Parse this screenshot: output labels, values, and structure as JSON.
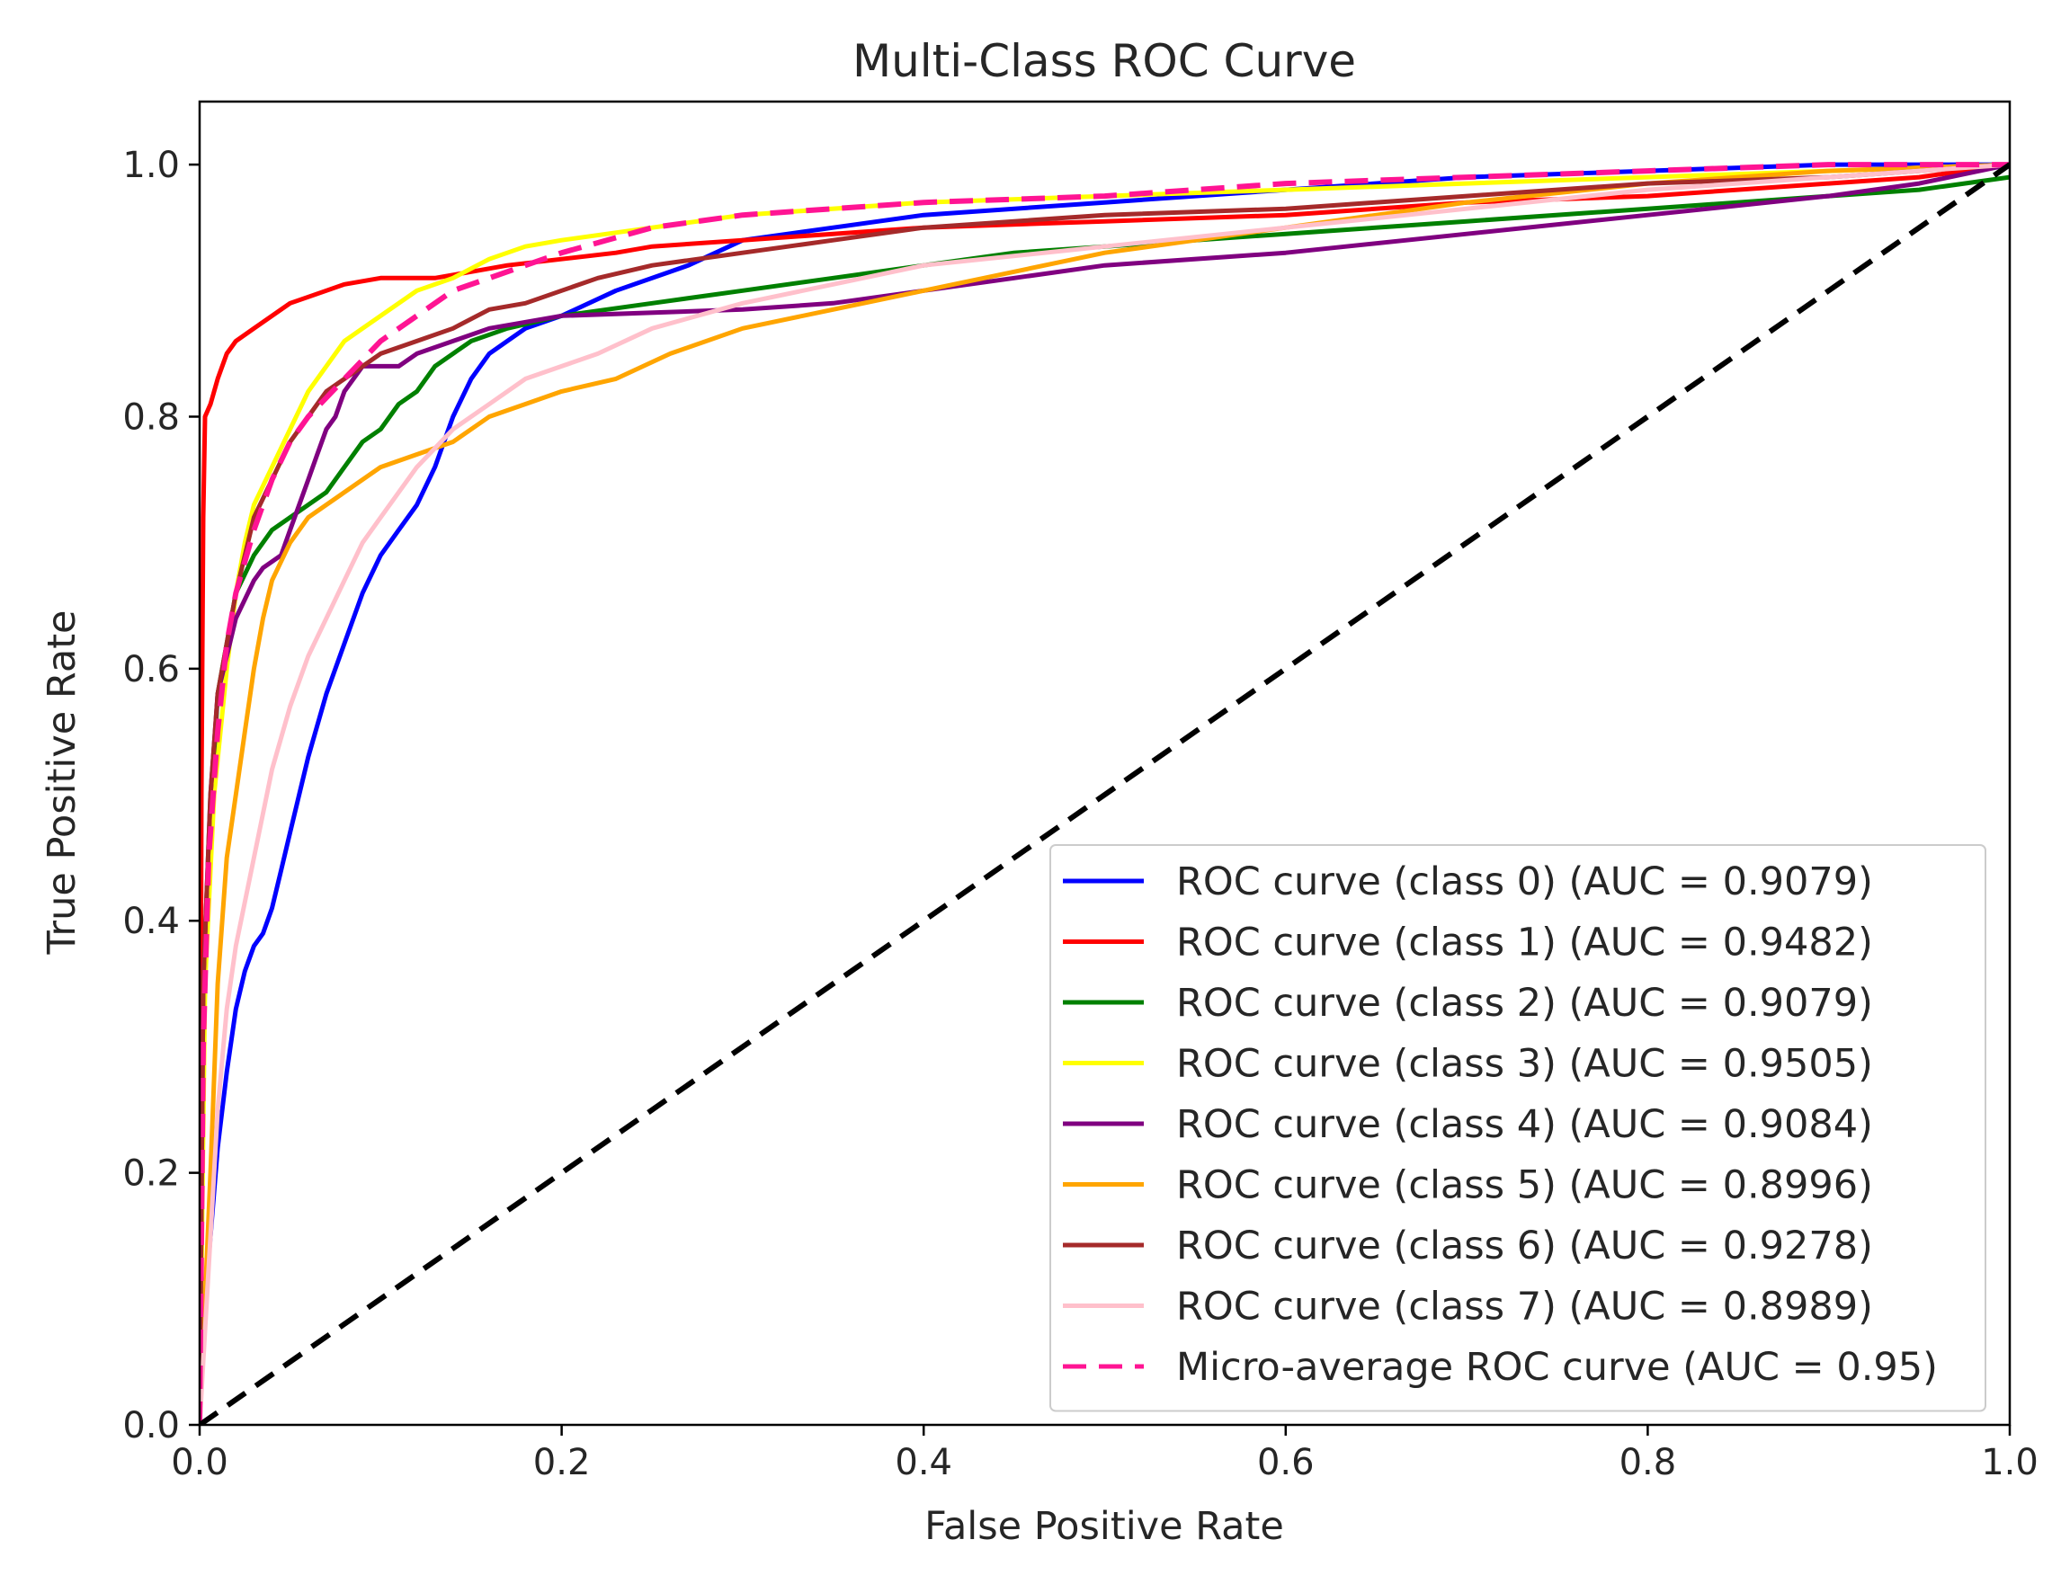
{
  "chart_data": {
    "type": "line",
    "title": "Multi-Class ROC Curve",
    "xlabel": "False Positive Rate",
    "ylabel": "True Positive Rate",
    "xlim": [
      0.0,
      1.0
    ],
    "ylim": [
      0.0,
      1.05
    ],
    "xticks": [
      0.0,
      0.2,
      0.4,
      0.6,
      0.8,
      1.0
    ],
    "yticks": [
      0.0,
      0.2,
      0.4,
      0.6,
      0.8,
      1.0
    ],
    "xtick_labels": [
      "0.0",
      "0.2",
      "0.4",
      "0.6",
      "0.8",
      "1.0"
    ],
    "ytick_labels": [
      "0.0",
      "0.2",
      "0.4",
      "0.6",
      "0.8",
      "1.0"
    ],
    "grid": false,
    "legend_position": "lower-right",
    "series": [
      {
        "name": "ROC curve (class 0) (AUC = 0.9079)",
        "color": "#0000ff",
        "style": "solid",
        "points": [
          [
            0,
            0
          ],
          [
            0.002,
            0.08
          ],
          [
            0.006,
            0.15
          ],
          [
            0.01,
            0.22
          ],
          [
            0.015,
            0.28
          ],
          [
            0.02,
            0.33
          ],
          [
            0.025,
            0.36
          ],
          [
            0.03,
            0.38
          ],
          [
            0.035,
            0.39
          ],
          [
            0.04,
            0.41
          ],
          [
            0.045,
            0.44
          ],
          [
            0.05,
            0.47
          ],
          [
            0.055,
            0.5
          ],
          [
            0.06,
            0.53
          ],
          [
            0.07,
            0.58
          ],
          [
            0.08,
            0.62
          ],
          [
            0.09,
            0.66
          ],
          [
            0.1,
            0.69
          ],
          [
            0.11,
            0.71
          ],
          [
            0.12,
            0.73
          ],
          [
            0.13,
            0.76
          ],
          [
            0.14,
            0.8
          ],
          [
            0.15,
            0.83
          ],
          [
            0.16,
            0.85
          ],
          [
            0.18,
            0.87
          ],
          [
            0.2,
            0.88
          ],
          [
            0.23,
            0.9
          ],
          [
            0.27,
            0.92
          ],
          [
            0.3,
            0.94
          ],
          [
            0.35,
            0.95
          ],
          [
            0.4,
            0.96
          ],
          [
            0.5,
            0.97
          ],
          [
            0.6,
            0.98
          ],
          [
            0.7,
            0.99
          ],
          [
            0.8,
            0.995
          ],
          [
            0.9,
            1.0
          ],
          [
            1.0,
            1.0
          ]
        ]
      },
      {
        "name": "ROC curve (class 1) (AUC = 0.9482)",
        "color": "#ff0000",
        "style": "solid",
        "points": [
          [
            0,
            0
          ],
          [
            0.001,
            0.5
          ],
          [
            0.002,
            0.72
          ],
          [
            0.003,
            0.8
          ],
          [
            0.006,
            0.81
          ],
          [
            0.01,
            0.83
          ],
          [
            0.015,
            0.85
          ],
          [
            0.02,
            0.86
          ],
          [
            0.03,
            0.87
          ],
          [
            0.04,
            0.88
          ],
          [
            0.05,
            0.89
          ],
          [
            0.06,
            0.895
          ],
          [
            0.07,
            0.9
          ],
          [
            0.08,
            0.905
          ],
          [
            0.1,
            0.91
          ],
          [
            0.13,
            0.91
          ],
          [
            0.15,
            0.915
          ],
          [
            0.17,
            0.92
          ],
          [
            0.2,
            0.925
          ],
          [
            0.23,
            0.93
          ],
          [
            0.25,
            0.935
          ],
          [
            0.3,
            0.94
          ],
          [
            0.35,
            0.945
          ],
          [
            0.4,
            0.95
          ],
          [
            0.5,
            0.955
          ],
          [
            0.6,
            0.96
          ],
          [
            0.7,
            0.97
          ],
          [
            0.8,
            0.975
          ],
          [
            0.9,
            0.985
          ],
          [
            0.95,
            0.99
          ],
          [
            1.0,
            1.0
          ]
        ]
      },
      {
        "name": "ROC curve (class 2) (AUC = 0.9079)",
        "color": "#008000",
        "style": "solid",
        "points": [
          [
            0,
            0
          ],
          [
            0.002,
            0.3
          ],
          [
            0.005,
            0.45
          ],
          [
            0.01,
            0.58
          ],
          [
            0.015,
            0.62
          ],
          [
            0.02,
            0.66
          ],
          [
            0.03,
            0.69
          ],
          [
            0.04,
            0.71
          ],
          [
            0.05,
            0.72
          ],
          [
            0.06,
            0.73
          ],
          [
            0.07,
            0.74
          ],
          [
            0.08,
            0.76
          ],
          [
            0.09,
            0.78
          ],
          [
            0.1,
            0.79
          ],
          [
            0.11,
            0.81
          ],
          [
            0.12,
            0.82
          ],
          [
            0.13,
            0.84
          ],
          [
            0.14,
            0.85
          ],
          [
            0.15,
            0.86
          ],
          [
            0.17,
            0.87
          ],
          [
            0.2,
            0.88
          ],
          [
            0.25,
            0.89
          ],
          [
            0.3,
            0.9
          ],
          [
            0.35,
            0.91
          ],
          [
            0.4,
            0.92
          ],
          [
            0.45,
            0.93
          ],
          [
            0.5,
            0.935
          ],
          [
            0.6,
            0.945
          ],
          [
            0.7,
            0.955
          ],
          [
            0.8,
            0.965
          ],
          [
            0.9,
            0.975
          ],
          [
            0.95,
            0.98
          ],
          [
            1.0,
            0.99
          ]
        ]
      },
      {
        "name": "ROC curve (class 3) (AUC = 0.9505)",
        "color": "#ffff00",
        "style": "solid",
        "points": [
          [
            0,
            0
          ],
          [
            0.003,
            0.35
          ],
          [
            0.008,
            0.5
          ],
          [
            0.015,
            0.6
          ],
          [
            0.02,
            0.66
          ],
          [
            0.025,
            0.7
          ],
          [
            0.03,
            0.73
          ],
          [
            0.04,
            0.76
          ],
          [
            0.05,
            0.79
          ],
          [
            0.06,
            0.82
          ],
          [
            0.07,
            0.84
          ],
          [
            0.08,
            0.86
          ],
          [
            0.09,
            0.87
          ],
          [
            0.1,
            0.88
          ],
          [
            0.12,
            0.9
          ],
          [
            0.14,
            0.91
          ],
          [
            0.16,
            0.925
          ],
          [
            0.18,
            0.935
          ],
          [
            0.2,
            0.94
          ],
          [
            0.25,
            0.95
          ],
          [
            0.3,
            0.96
          ],
          [
            0.4,
            0.97
          ],
          [
            0.5,
            0.975
          ],
          [
            0.6,
            0.98
          ],
          [
            0.7,
            0.985
          ],
          [
            0.8,
            0.99
          ],
          [
            0.9,
            0.995
          ],
          [
            1.0,
            1.0
          ]
        ]
      },
      {
        "name": "ROC curve (class 4) (AUC = 0.9084)",
        "color": "#800080",
        "style": "solid",
        "points": [
          [
            0,
            0
          ],
          [
            0.002,
            0.35
          ],
          [
            0.006,
            0.5
          ],
          [
            0.01,
            0.58
          ],
          [
            0.02,
            0.64
          ],
          [
            0.03,
            0.67
          ],
          [
            0.035,
            0.68
          ],
          [
            0.045,
            0.69
          ],
          [
            0.05,
            0.71
          ],
          [
            0.055,
            0.73
          ],
          [
            0.06,
            0.75
          ],
          [
            0.065,
            0.77
          ],
          [
            0.07,
            0.79
          ],
          [
            0.075,
            0.8
          ],
          [
            0.08,
            0.82
          ],
          [
            0.09,
            0.84
          ],
          [
            0.11,
            0.84
          ],
          [
            0.12,
            0.85
          ],
          [
            0.14,
            0.86
          ],
          [
            0.16,
            0.87
          ],
          [
            0.2,
            0.88
          ],
          [
            0.3,
            0.885
          ],
          [
            0.35,
            0.89
          ],
          [
            0.4,
            0.9
          ],
          [
            0.45,
            0.91
          ],
          [
            0.5,
            0.92
          ],
          [
            0.6,
            0.93
          ],
          [
            0.7,
            0.945
          ],
          [
            0.8,
            0.96
          ],
          [
            0.9,
            0.975
          ],
          [
            0.95,
            0.985
          ],
          [
            1.0,
            1.0
          ]
        ]
      },
      {
        "name": "ROC curve (class 5) (AUC = 0.8996)",
        "color": "#ffa500",
        "style": "solid",
        "points": [
          [
            0,
            0
          ],
          [
            0.003,
            0.1
          ],
          [
            0.006,
            0.2
          ],
          [
            0.01,
            0.35
          ],
          [
            0.015,
            0.45
          ],
          [
            0.02,
            0.5
          ],
          [
            0.025,
            0.55
          ],
          [
            0.03,
            0.6
          ],
          [
            0.035,
            0.64
          ],
          [
            0.04,
            0.67
          ],
          [
            0.05,
            0.7
          ],
          [
            0.06,
            0.72
          ],
          [
            0.07,
            0.73
          ],
          [
            0.08,
            0.74
          ],
          [
            0.1,
            0.76
          ],
          [
            0.12,
            0.77
          ],
          [
            0.14,
            0.78
          ],
          [
            0.16,
            0.8
          ],
          [
            0.18,
            0.81
          ],
          [
            0.2,
            0.82
          ],
          [
            0.23,
            0.83
          ],
          [
            0.26,
            0.85
          ],
          [
            0.3,
            0.87
          ],
          [
            0.35,
            0.885
          ],
          [
            0.4,
            0.9
          ],
          [
            0.45,
            0.915
          ],
          [
            0.5,
            0.93
          ],
          [
            0.6,
            0.95
          ],
          [
            0.7,
            0.97
          ],
          [
            0.8,
            0.985
          ],
          [
            0.9,
            0.995
          ],
          [
            1.0,
            1.0
          ]
        ]
      },
      {
        "name": "ROC curve (class 6) (AUC = 0.9278)",
        "color": "#a52a2a",
        "style": "solid",
        "points": [
          [
            0,
            0
          ],
          [
            0.002,
            0.35
          ],
          [
            0.006,
            0.5
          ],
          [
            0.01,
            0.58
          ],
          [
            0.02,
            0.66
          ],
          [
            0.03,
            0.72
          ],
          [
            0.04,
            0.75
          ],
          [
            0.05,
            0.78
          ],
          [
            0.06,
            0.8
          ],
          [
            0.07,
            0.82
          ],
          [
            0.08,
            0.83
          ],
          [
            0.09,
            0.84
          ],
          [
            0.1,
            0.85
          ],
          [
            0.12,
            0.86
          ],
          [
            0.14,
            0.87
          ],
          [
            0.16,
            0.885
          ],
          [
            0.18,
            0.89
          ],
          [
            0.2,
            0.9
          ],
          [
            0.22,
            0.91
          ],
          [
            0.25,
            0.92
          ],
          [
            0.3,
            0.93
          ],
          [
            0.35,
            0.94
          ],
          [
            0.4,
            0.95
          ],
          [
            0.5,
            0.96
          ],
          [
            0.6,
            0.965
          ],
          [
            0.7,
            0.975
          ],
          [
            0.8,
            0.985
          ],
          [
            0.9,
            0.99
          ],
          [
            1.0,
            1.0
          ]
        ]
      },
      {
        "name": "ROC curve (class 7) (AUC = 0.8989)",
        "color": "#ffc0cb",
        "style": "solid",
        "points": [
          [
            0,
            0
          ],
          [
            0.002,
            0.05
          ],
          [
            0.006,
            0.15
          ],
          [
            0.01,
            0.25
          ],
          [
            0.015,
            0.33
          ],
          [
            0.02,
            0.38
          ],
          [
            0.03,
            0.45
          ],
          [
            0.04,
            0.52
          ],
          [
            0.05,
            0.57
          ],
          [
            0.06,
            0.61
          ],
          [
            0.07,
            0.64
          ],
          [
            0.08,
            0.67
          ],
          [
            0.09,
            0.7
          ],
          [
            0.1,
            0.72
          ],
          [
            0.12,
            0.76
          ],
          [
            0.14,
            0.79
          ],
          [
            0.16,
            0.81
          ],
          [
            0.18,
            0.83
          ],
          [
            0.2,
            0.84
          ],
          [
            0.22,
            0.85
          ],
          [
            0.25,
            0.87
          ],
          [
            0.3,
            0.89
          ],
          [
            0.35,
            0.905
          ],
          [
            0.4,
            0.92
          ],
          [
            0.5,
            0.935
          ],
          [
            0.6,
            0.95
          ],
          [
            0.7,
            0.965
          ],
          [
            0.8,
            0.98
          ],
          [
            0.9,
            0.99
          ],
          [
            1.0,
            1.0
          ]
        ]
      },
      {
        "name": "Micro-average ROC curve (AUC = 0.95)",
        "color": "#ff1493",
        "style": "dashed",
        "points": [
          [
            0,
            0
          ],
          [
            0.002,
            0.3
          ],
          [
            0.005,
            0.45
          ],
          [
            0.01,
            0.55
          ],
          [
            0.015,
            0.62
          ],
          [
            0.02,
            0.66
          ],
          [
            0.03,
            0.71
          ],
          [
            0.04,
            0.75
          ],
          [
            0.05,
            0.78
          ],
          [
            0.06,
            0.8
          ],
          [
            0.08,
            0.83
          ],
          [
            0.1,
            0.86
          ],
          [
            0.12,
            0.88
          ],
          [
            0.14,
            0.9
          ],
          [
            0.16,
            0.91
          ],
          [
            0.18,
            0.92
          ],
          [
            0.2,
            0.93
          ],
          [
            0.25,
            0.95
          ],
          [
            0.3,
            0.96
          ],
          [
            0.4,
            0.97
          ],
          [
            0.5,
            0.975
          ],
          [
            0.6,
            0.985
          ],
          [
            0.7,
            0.99
          ],
          [
            0.8,
            0.995
          ],
          [
            0.9,
            1.0
          ],
          [
            1.0,
            1.0
          ]
        ]
      },
      {
        "name": "",
        "color": "#000000",
        "style": "diagonal",
        "points": [
          [
            0,
            0
          ],
          [
            1,
            1
          ]
        ]
      }
    ]
  }
}
